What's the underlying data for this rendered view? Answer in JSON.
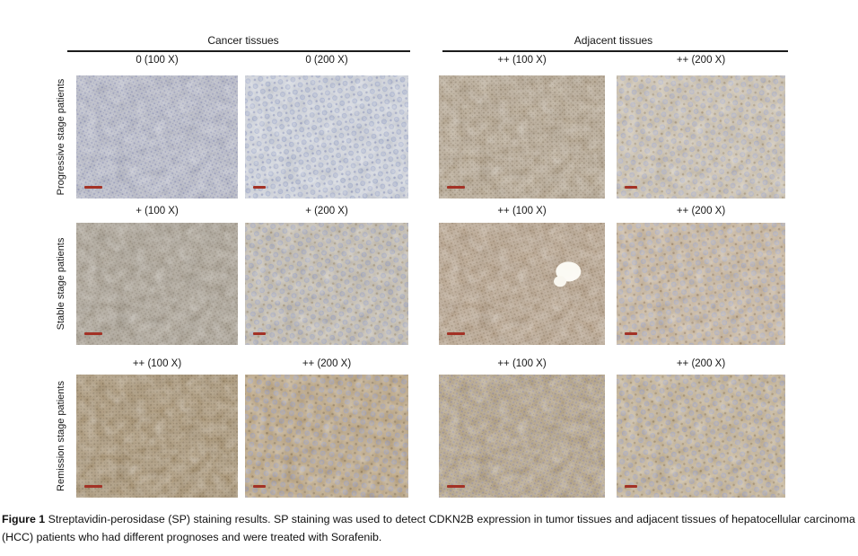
{
  "figure": {
    "column_groups": [
      {
        "label": "Cancer tissues"
      },
      {
        "label": "Adjacent tissues"
      }
    ],
    "rows": [
      {
        "label": "Progressive stage patients",
        "cells": [
          {
            "label": "0 (100 X)",
            "score": "0",
            "magnification": "100 X",
            "tissue": "cancer",
            "mag": "100",
            "base": "#c5c8d8",
            "nucleus": "#6f76ad",
            "speck": "#545b98"
          },
          {
            "label": "0 (200 X)",
            "score": "0",
            "magnification": "200 X",
            "tissue": "cancer",
            "mag": "200",
            "base": "#dde2ec",
            "nucleus": "#8f9cc8",
            "speck": "#6a74ad"
          },
          {
            "label": "++ (100 X)",
            "score": "++",
            "magnification": "100 X",
            "tissue": "adjacent",
            "mag": "100",
            "base": "#c2b096",
            "nucleus": "#7a684c",
            "speck": "#5c4a30"
          },
          {
            "label": "++ (200 X)",
            "score": "++",
            "magnification": "200 X",
            "tissue": "adjacent",
            "mag": "200",
            "base": "#d7cab4",
            "nucleus": "#9aa3ca",
            "speck": "#8b7350"
          }
        ]
      },
      {
        "label": "Stable stage patients",
        "cells": [
          {
            "label": "+ (100 X)",
            "score": "+",
            "magnification": "100 X",
            "tissue": "cancer",
            "mag": "100",
            "base": "#b4aa9a",
            "nucleus": "#7d7260",
            "speck": "#5f5542"
          },
          {
            "label": "+ (200 X)",
            "score": "+",
            "magnification": "200 X",
            "tissue": "cancer",
            "mag": "200",
            "base": "#cdc4b4",
            "nucleus": "#8d97c0",
            "speck": "#86704e"
          },
          {
            "label": "++ (100 X)",
            "score": "++",
            "magnification": "100 X",
            "tissue": "adjacent",
            "mag": "100",
            "base": "#c5ad92",
            "nucleus": "#826a4c",
            "speck": "#64502f",
            "white_patch": true
          },
          {
            "label": "++ (200 X)",
            "score": "++",
            "magnification": "200 X",
            "tissue": "adjacent",
            "mag": "200",
            "base": "#d2bc9f",
            "nucleus": "#97a1c8",
            "speck": "#7d5f3c"
          }
        ]
      },
      {
        "label": "Remission stage patients",
        "cells": [
          {
            "label": "++ (100 X)",
            "score": "++",
            "magnification": "100 X",
            "tissue": "cancer",
            "mag": "100",
            "base": "#b29a74",
            "nucleus": "#6f5c3c",
            "speck": "#57452a"
          },
          {
            "label": "++ (200 X)",
            "score": "++",
            "magnification": "200 X",
            "tissue": "cancer",
            "mag": "200",
            "base": "#c3a87e",
            "nucleus": "#8b92bc",
            "speck": "#6f5835"
          },
          {
            "label": "++ (100 X)",
            "score": "++",
            "magnification": "100 X",
            "tissue": "adjacent",
            "mag": "100",
            "base": "#bea987",
            "nucleus": "#7b76a6",
            "speck": "#635033"
          },
          {
            "label": "++ (200 X)",
            "score": "++",
            "magnification": "200 X",
            "tissue": "adjacent",
            "mag": "200",
            "base": "#cdb895",
            "nucleus": "#9097c2",
            "speck": "#7c6037"
          }
        ]
      }
    ],
    "scale_bar_color": "#a33226",
    "caption": {
      "label": "Figure 1",
      "text": " Streptavidin-perosidase (SP) staining results. SP staining was used to detect CDKN2B expression in tumor tissues and adjacent tissues of hepatocellular carcinoma (HCC) patients who had different prognoses and were treated with Sorafenib."
    }
  }
}
